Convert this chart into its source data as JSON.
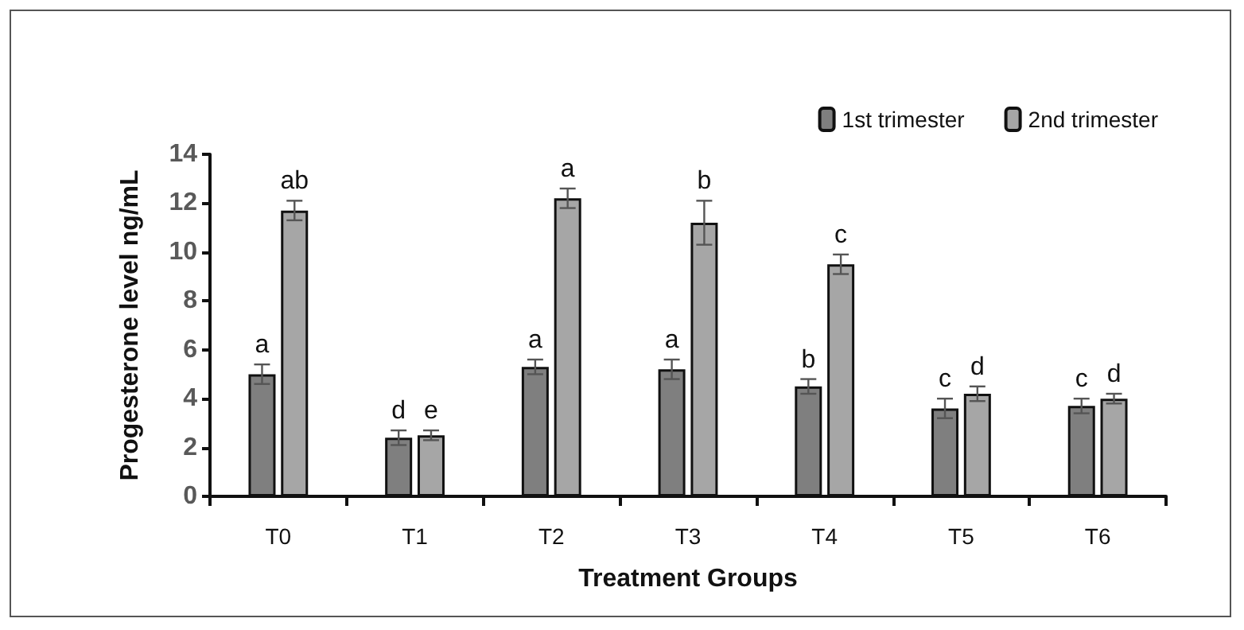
{
  "chart_data": {
    "type": "bar",
    "xlabel": "Treatment Groups",
    "ylabel": "Progesterone level ng/mL",
    "categories": [
      "T0",
      "T1",
      "T2",
      "T3",
      "T4",
      "T5",
      "T6"
    ],
    "series": [
      {
        "name": "1st trimester",
        "color": "#7f7f7f",
        "values": [
          5.0,
          2.4,
          5.3,
          5.2,
          4.5,
          3.6,
          3.7
        ],
        "errors": [
          0.4,
          0.3,
          0.3,
          0.4,
          0.3,
          0.4,
          0.3
        ],
        "value_labels": [
          "a",
          "d",
          "a",
          "a",
          "b",
          "c",
          "c"
        ]
      },
      {
        "name": "2nd trimester",
        "color": "#a6a6a6",
        "values": [
          11.7,
          2.5,
          12.2,
          11.2,
          9.5,
          4.2,
          4.0
        ],
        "errors": [
          0.4,
          0.2,
          0.4,
          0.9,
          0.4,
          0.3,
          0.2
        ],
        "value_labels": [
          "ab",
          "e",
          "a",
          "b",
          "c",
          "d",
          "d"
        ]
      }
    ],
    "ylim": [
      0,
      14
    ],
    "yticks": [
      0,
      2,
      4,
      6,
      8,
      10,
      12,
      14
    ],
    "grid": false,
    "legend": "top right"
  }
}
